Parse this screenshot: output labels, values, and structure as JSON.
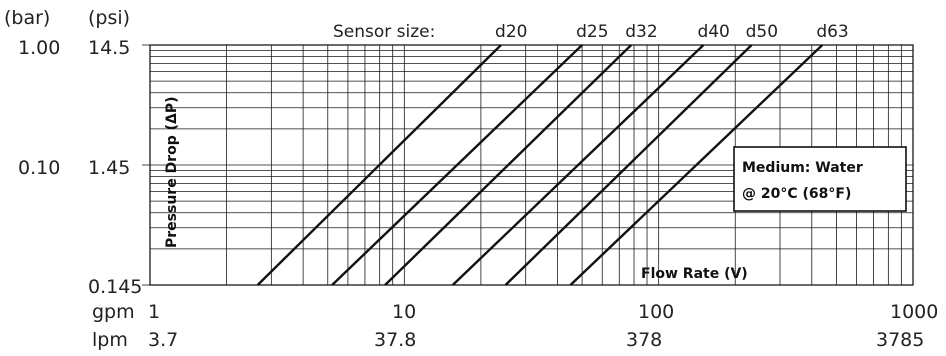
{
  "chart_data": {
    "type": "line",
    "xscale": "log",
    "yscale": "log",
    "xlim": [
      1,
      1000
    ],
    "ylim": [
      0.145,
      14.5
    ],
    "grid": true,
    "sensor_size_label": "Sensor size:",
    "medium_line1": "Medium: Water",
    "medium_line2": "@ 20°C (68°F)",
    "xlabel": "Flow Rate (V)",
    "ylabel": "Pressure Drop (ΔP)",
    "y_unit_bar": "(bar)",
    "y_unit_psi": "(psi)",
    "y_ticks_bar": [
      "1.00",
      "0.10"
    ],
    "y_ticks_psi": [
      "14.5",
      "1.45",
      "0.145"
    ],
    "x_unit_gpm": "gpm",
    "x_unit_lpm": "lpm",
    "x_ticks_gpm": [
      "1",
      "10",
      "100",
      "1000"
    ],
    "x_ticks_lpm": [
      "3.7",
      "37.8",
      "378",
      "3785"
    ],
    "series": [
      {
        "name": "d20",
        "x": [
          2.65,
          24
        ],
        "y": [
          0.145,
          14.5
        ]
      },
      {
        "name": "d25",
        "x": [
          5.2,
          50
        ],
        "y": [
          0.145,
          14.5
        ]
      },
      {
        "name": "d32",
        "x": [
          8.4,
          78
        ],
        "y": [
          0.145,
          14.5
        ]
      },
      {
        "name": "d40",
        "x": [
          15.5,
          150
        ],
        "y": [
          0.145,
          14.5
        ]
      },
      {
        "name": "d50",
        "x": [
          25,
          232
        ],
        "y": [
          0.145,
          14.5
        ]
      },
      {
        "name": "d63",
        "x": [
          45,
          440
        ],
        "y": [
          0.145,
          14.5
        ]
      }
    ]
  }
}
